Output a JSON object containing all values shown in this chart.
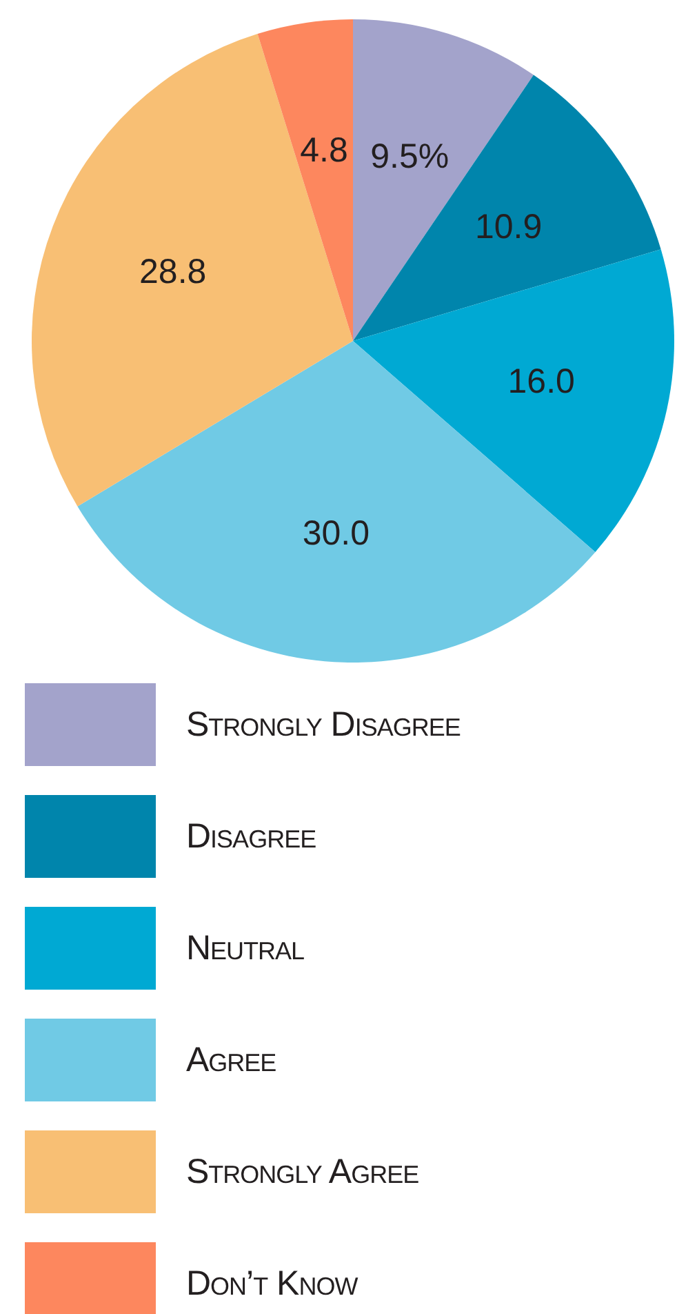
{
  "chart_data": {
    "type": "pie",
    "categories": [
      "Strongly Disagree",
      "Disagree",
      "Neutral",
      "Agree",
      "Strongly Agree",
      "Don’t Know"
    ],
    "values": [
      9.5,
      10.9,
      16.0,
      30.0,
      28.8,
      4.8
    ],
    "colors": [
      "#a3a3cb",
      "#0085ac",
      "#00a9d3",
      "#70cae5",
      "#f8bf74",
      "#fd875e"
    ],
    "value_labels": [
      "9.5%",
      "10.9",
      "16.0",
      "30.0",
      "28.8",
      "4.8"
    ],
    "legend": "bottom"
  }
}
